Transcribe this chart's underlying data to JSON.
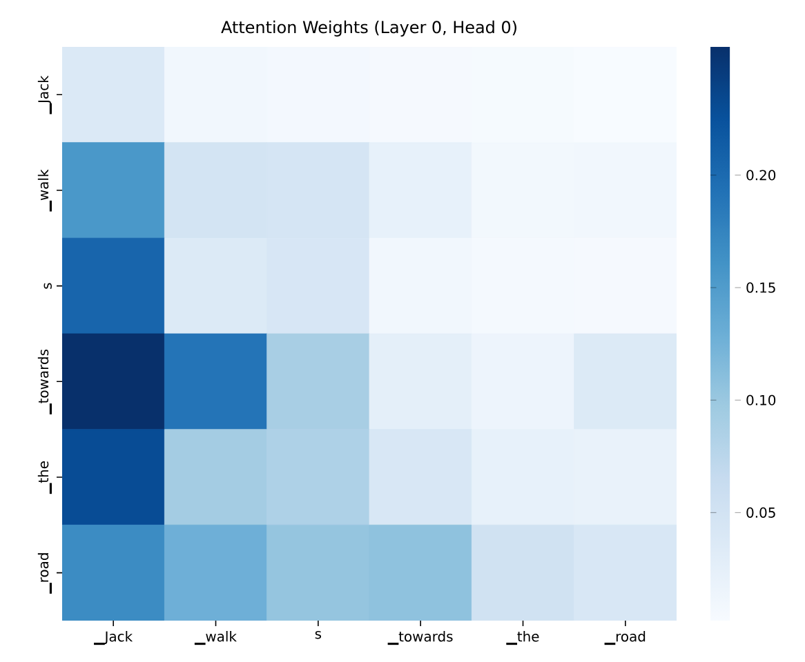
{
  "chart_data": {
    "type": "heatmap",
    "title": "Attention Weights (Layer 0, Head 0)",
    "categories": [
      "▁Jack",
      "▁walk",
      "s",
      "▁towards",
      "▁the",
      "▁road"
    ],
    "y_categories": [
      "▁Jack",
      "▁walk",
      "s",
      "▁towards",
      "▁the",
      "▁road"
    ],
    "cells": [
      [
        0.038,
        0.01,
        0.007,
        0.005,
        0.004,
        0.002
      ],
      [
        0.155,
        0.048,
        0.046,
        0.022,
        0.008,
        0.01
      ],
      [
        0.205,
        0.036,
        0.043,
        0.01,
        0.006,
        0.005
      ],
      [
        0.257,
        0.19,
        0.09,
        0.026,
        0.015,
        0.036
      ],
      [
        0.23,
        0.093,
        0.085,
        0.042,
        0.022,
        0.02
      ],
      [
        0.167,
        0.128,
        0.103,
        0.107,
        0.052,
        0.042
      ]
    ],
    "clim": [
      0.002,
      0.257
    ],
    "cticks": [
      {
        "value": 0.05,
        "label": "0.05"
      },
      {
        "value": 0.1,
        "label": "0.10"
      },
      {
        "value": 0.15,
        "label": "0.15"
      },
      {
        "value": 0.2,
        "label": "0.20"
      }
    ]
  }
}
